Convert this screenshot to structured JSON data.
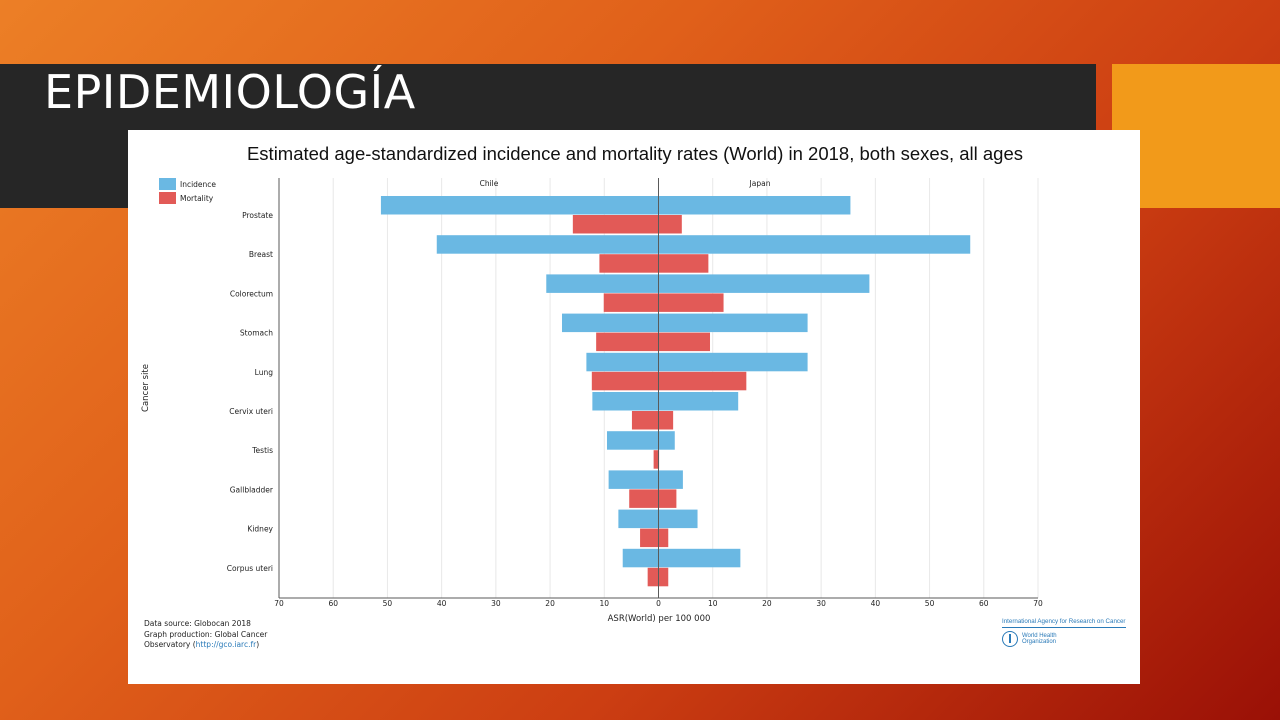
{
  "slide": {
    "title": "EPIDEMIOLOGÍA"
  },
  "colors": {
    "incidence": "#6ab8e3",
    "mortality": "#e25a57",
    "axis": "#5a5a5a",
    "grid": "#e8e8e8"
  },
  "chart_data": {
    "type": "bar",
    "title": "Estimated age-standardized incidence and mortality rates (World) in 2018, both sexes, all ages",
    "xlabel": "ASR(World) per 100 000",
    "ylabel": "Cancer site",
    "xlim": [
      -70,
      70
    ],
    "xticks": [
      70,
      60,
      50,
      40,
      30,
      20,
      10,
      0,
      10,
      20,
      30,
      40,
      50,
      60,
      70
    ],
    "left_panel": "Chile",
    "right_panel": "Japan",
    "legend": [
      "Incidence",
      "Mortality"
    ],
    "legend_position": "top-left",
    "grid": true,
    "categories": [
      "Prostate",
      "Breast",
      "Colorectum",
      "Stomach",
      "Lung",
      "Cervix uteri",
      "Testis",
      "Gallbladder",
      "Kidney",
      "Corpus uteri"
    ],
    "series": [
      {
        "name": "Incidence",
        "country": "Chile",
        "values": [
          51.2,
          40.9,
          20.7,
          17.8,
          13.3,
          12.2,
          9.5,
          9.2,
          7.4,
          6.6
        ]
      },
      {
        "name": "Mortality",
        "country": "Chile",
        "values": [
          15.8,
          10.9,
          10.1,
          11.5,
          12.3,
          4.9,
          0.9,
          5.4,
          3.4,
          2.0
        ]
      },
      {
        "name": "Incidence",
        "country": "Japan",
        "values": [
          35.4,
          57.5,
          38.9,
          27.5,
          27.5,
          14.7,
          3.0,
          4.5,
          7.2,
          15.1
        ]
      },
      {
        "name": "Mortality",
        "country": "Japan",
        "values": [
          4.3,
          9.2,
          12.0,
          9.5,
          16.2,
          2.7,
          0.1,
          3.3,
          1.8,
          1.8
        ]
      }
    ]
  },
  "footer": {
    "line1": "Data source: Globocan 2018",
    "line2": "Graph production: Global Cancer",
    "line3_prefix": "Observatory (",
    "link": "http://gco.iarc.fr",
    "line3_suffix": ")",
    "iarc": "International Agency for Research on Cancer",
    "who_line1": "World Health",
    "who_line2": "Organization"
  }
}
